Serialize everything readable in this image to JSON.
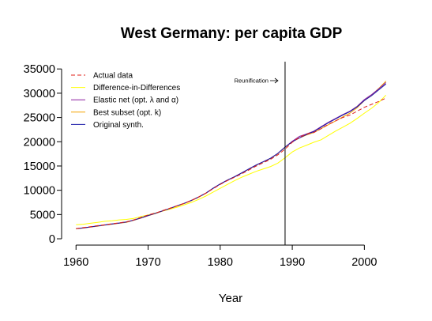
{
  "chart_data": {
    "type": "line",
    "title": "West Germany: per capita GDP",
    "xlabel": "Year",
    "ylabel": "",
    "xlim": [
      1958,
      2005
    ],
    "ylim": [
      -1300,
      36500
    ],
    "xticks": [
      1960,
      1970,
      1980,
      1990,
      2000
    ],
    "yticks": [
      0,
      5000,
      10000,
      15000,
      20000,
      25000,
      30000,
      35000
    ],
    "grid": false,
    "legend_position": "top-left",
    "treatment_year": 1989,
    "annotation": "Reunification",
    "x": [
      1960,
      1961,
      1962,
      1963,
      1964,
      1965,
      1966,
      1967,
      1968,
      1969,
      1970,
      1971,
      1972,
      1973,
      1974,
      1975,
      1976,
      1977,
      1978,
      1979,
      1980,
      1981,
      1982,
      1983,
      1984,
      1985,
      1986,
      1987,
      1988,
      1989,
      1990,
      1991,
      1992,
      1993,
      1994,
      1995,
      1996,
      1997,
      1998,
      1999,
      2000,
      2001,
      2002,
      2003
    ],
    "series": [
      {
        "name": "Actual data",
        "color": "#e0201a",
        "dash": "5,3",
        "values": [
          2100,
          2300,
          2500,
          2700,
          2900,
          3100,
          3300,
          3500,
          3900,
          4400,
          4900,
          5300,
          5800,
          6300,
          6800,
          7300,
          7900,
          8600,
          9400,
          10300,
          11200,
          12000,
          12700,
          13400,
          14200,
          15000,
          15700,
          16400,
          17300,
          18500,
          19900,
          20900,
          21600,
          21900,
          22700,
          23600,
          24300,
          25000,
          25500,
          26300,
          27100,
          27700,
          28300,
          29000
        ]
      },
      {
        "name": "Difference-in-Differences",
        "color": "#ffff00",
        "dash": "",
        "values": [
          2900,
          3000,
          3200,
          3400,
          3600,
          3700,
          3900,
          4000,
          4200,
          4600,
          4900,
          5300,
          5700,
          6100,
          6500,
          7000,
          7500,
          8100,
          8800,
          9600,
          10400,
          11200,
          12000,
          12700,
          13300,
          13900,
          14400,
          14900,
          15600,
          16700,
          17900,
          18700,
          19300,
          19900,
          20400,
          21300,
          22200,
          23000,
          23800,
          24800,
          25900,
          26900,
          28100,
          29600
        ]
      },
      {
        "name": "Elastic net (opt. λ and α)",
        "color": "#8a1fa0",
        "dash": "",
        "values": [
          2100,
          2250,
          2450,
          2650,
          2850,
          3050,
          3250,
          3450,
          3850,
          4300,
          4800,
          5250,
          5750,
          6250,
          6800,
          7300,
          7900,
          8600,
          9400,
          10400,
          11300,
          12100,
          12800,
          13600,
          14400,
          15200,
          15900,
          16600,
          17600,
          18900,
          20100,
          21100,
          21600,
          22200,
          23100,
          24000,
          24800,
          25600,
          26300,
          27300,
          28700,
          29700,
          30900,
          32200
        ]
      },
      {
        "name": "Best subset (opt. k)",
        "color": "#f5a300",
        "dash": "",
        "values": [
          2050,
          2200,
          2400,
          2600,
          2800,
          3000,
          3200,
          3400,
          3800,
          4250,
          4750,
          5200,
          5700,
          6200,
          6750,
          7250,
          7850,
          8550,
          9350,
          10350,
          11250,
          12050,
          12750,
          13550,
          14350,
          15150,
          15850,
          16550,
          17550,
          18850,
          20000,
          20800,
          21400,
          21900,
          22700,
          23500,
          24300,
          25100,
          25900,
          27000,
          28500,
          29600,
          31000,
          32500
        ]
      },
      {
        "name": "Original synth.",
        "color": "#1a1aa8",
        "dash": "",
        "values": [
          2100,
          2250,
          2450,
          2650,
          2850,
          3050,
          3250,
          3450,
          3850,
          4300,
          4800,
          5250,
          5750,
          6250,
          6800,
          7300,
          7900,
          8600,
          9400,
          10400,
          11300,
          12100,
          12800,
          13600,
          14400,
          15200,
          15900,
          16600,
          17600,
          18900,
          20000,
          20800,
          21500,
          22100,
          23000,
          23900,
          24700,
          25500,
          26200,
          27200,
          28500,
          29500,
          30700,
          31900
        ]
      }
    ]
  }
}
